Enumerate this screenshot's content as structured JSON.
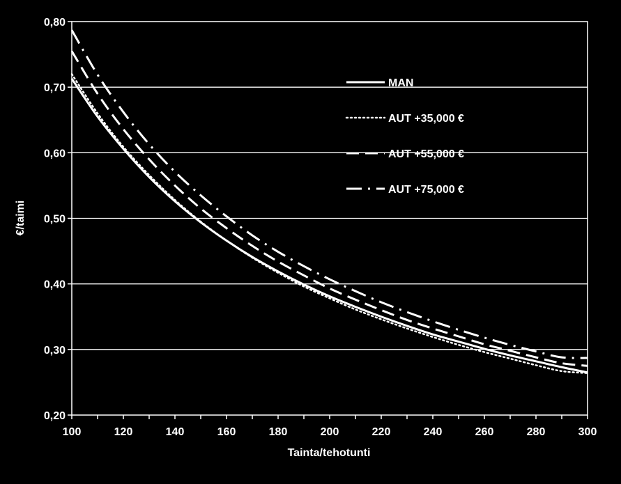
{
  "chart_data": {
    "type": "line",
    "xlabel": "Tainta/tehotunti",
    "ylabel": "€/taimi",
    "xlim": [
      100,
      300
    ],
    "ylim": [
      0.2,
      0.8
    ],
    "x_ticks": [
      "100",
      "120",
      "140",
      "160",
      "180",
      "200",
      "220",
      "240",
      "260",
      "280",
      "300"
    ],
    "y_ticks": [
      "0,20",
      "0,30",
      "0,40",
      "0,50",
      "0,60",
      "0,70",
      "0,80"
    ],
    "grid": "horizontal",
    "legend_position": "upper-center",
    "background": "#000000",
    "line_color": "#ffffff",
    "x": [
      100,
      110,
      120,
      130,
      140,
      150,
      160,
      170,
      180,
      190,
      200,
      210,
      220,
      230,
      240,
      250,
      260,
      270,
      280,
      290,
      300
    ],
    "series": [
      {
        "name": "MAN",
        "style": "solid",
        "values": [
          0.713,
          0.655,
          0.606,
          0.563,
          0.526,
          0.494,
          0.466,
          0.441,
          0.419,
          0.399,
          0.381,
          0.365,
          0.35,
          0.336,
          0.323,
          0.312,
          0.301,
          0.291,
          0.282,
          0.273,
          0.265
        ]
      },
      {
        "name": "AUT +35,000 €",
        "style": "dotted",
        "values": [
          0.72,
          0.66,
          0.609,
          0.566,
          0.528,
          0.495,
          0.466,
          0.44,
          0.417,
          0.396,
          0.378,
          0.361,
          0.346,
          0.332,
          0.319,
          0.307,
          0.296,
          0.286,
          0.276,
          0.267,
          0.264
        ]
      },
      {
        "name": "AUT +55,000 €",
        "style": "dashed",
        "values": [
          0.755,
          0.69,
          0.636,
          0.59,
          0.55,
          0.515,
          0.485,
          0.458,
          0.434,
          0.413,
          0.393,
          0.376,
          0.36,
          0.345,
          0.332,
          0.32,
          0.308,
          0.298,
          0.288,
          0.279,
          0.275
        ]
      },
      {
        "name": "AUT +75,000 €",
        "style": "dash-dot",
        "values": [
          0.787,
          0.719,
          0.662,
          0.613,
          0.571,
          0.535,
          0.503,
          0.474,
          0.449,
          0.427,
          0.407,
          0.389,
          0.372,
          0.357,
          0.343,
          0.33,
          0.318,
          0.307,
          0.297,
          0.288,
          0.287
        ]
      }
    ]
  }
}
